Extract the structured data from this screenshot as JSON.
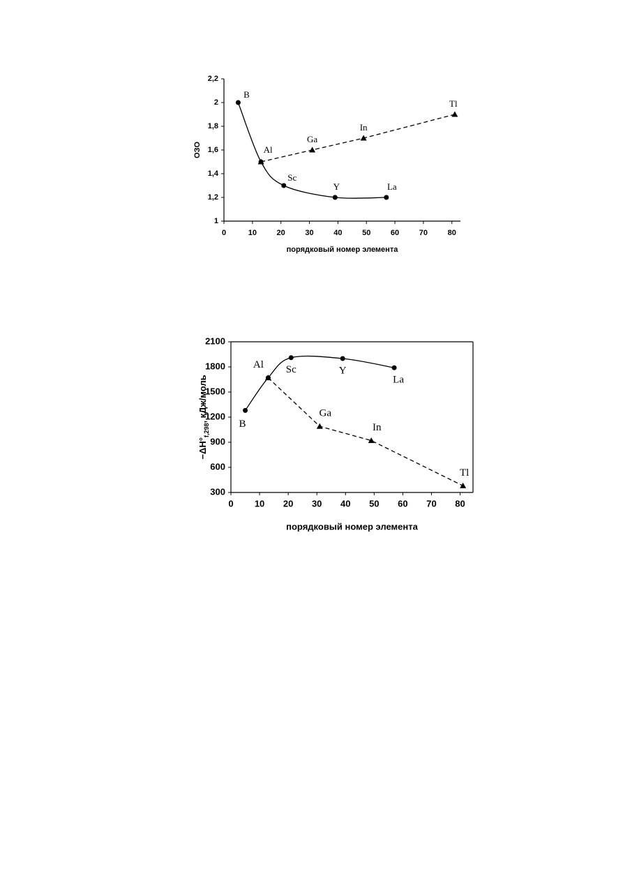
{
  "chart_data": [
    {
      "type": "line",
      "ylabel": "ОЗО",
      "xlabel": "порядковый номер элемента",
      "xlim": [
        0,
        83
      ],
      "xticks": [
        0,
        10,
        20,
        30,
        40,
        50,
        60,
        70,
        80
      ],
      "ylim": [
        1,
        2.2
      ],
      "yticks": [
        1,
        {
          "value": 1.2,
          "label": "1,2"
        },
        {
          "value": 1.4,
          "label": "1,4"
        },
        {
          "value": 1.6,
          "label": "1,6"
        },
        {
          "value": 1.8,
          "label": "1,8"
        },
        2,
        {
          "value": 2.2,
          "label": "2,2"
        }
      ],
      "frame": "axes",
      "series": [
        {
          "color": "#000000",
          "line_style": "solid",
          "smooth": true,
          "marker": "circle",
          "x": [
            5,
            13,
            21,
            39,
            57
          ],
          "values": [
            2.0,
            1.5,
            1.3,
            1.2,
            1.2
          ],
          "labels": [
            "B",
            "Al",
            "Sc",
            "Y",
            "La"
          ]
        },
        {
          "color": "#000000",
          "line_style": "dashed",
          "smooth": false,
          "marker": "triangle",
          "x": [
            13,
            31,
            49,
            81
          ],
          "values": [
            1.5,
            1.6,
            1.7,
            1.9
          ],
          "labels": [
            null,
            "Ga",
            "In",
            "Tl"
          ]
        }
      ]
    },
    {
      "type": "line",
      "ylabel": [
        "−ΔH°",
        "f,298",
        ", кДж/моль"
      ],
      "xlabel": "порядковый номер элемента",
      "xlim": [
        0,
        84.5
      ],
      "xticks": [
        0,
        10,
        20,
        30,
        40,
        50,
        60,
        70,
        80
      ],
      "ylim": [
        300,
        2100
      ],
      "yticks": [
        300,
        600,
        900,
        1200,
        1500,
        1800,
        2100
      ],
      "frame": "full",
      "series": [
        {
          "color": "#000000",
          "line_style": "solid",
          "smooth": true,
          "marker": "circle",
          "x": [
            5,
            13,
            21,
            39,
            57
          ],
          "values": [
            1280,
            1670,
            1910,
            1900,
            1790
          ],
          "labels": [
            "B",
            "Al",
            "Sc",
            "Y",
            "La"
          ]
        },
        {
          "color": "#000000",
          "line_style": "dashed",
          "smooth": false,
          "marker": "triangle",
          "x": [
            13,
            31,
            49,
            81
          ],
          "values": [
            1670,
            1090,
            920,
            380
          ],
          "labels": [
            null,
            "Ga",
            "In",
            "Tl"
          ]
        }
      ]
    }
  ]
}
